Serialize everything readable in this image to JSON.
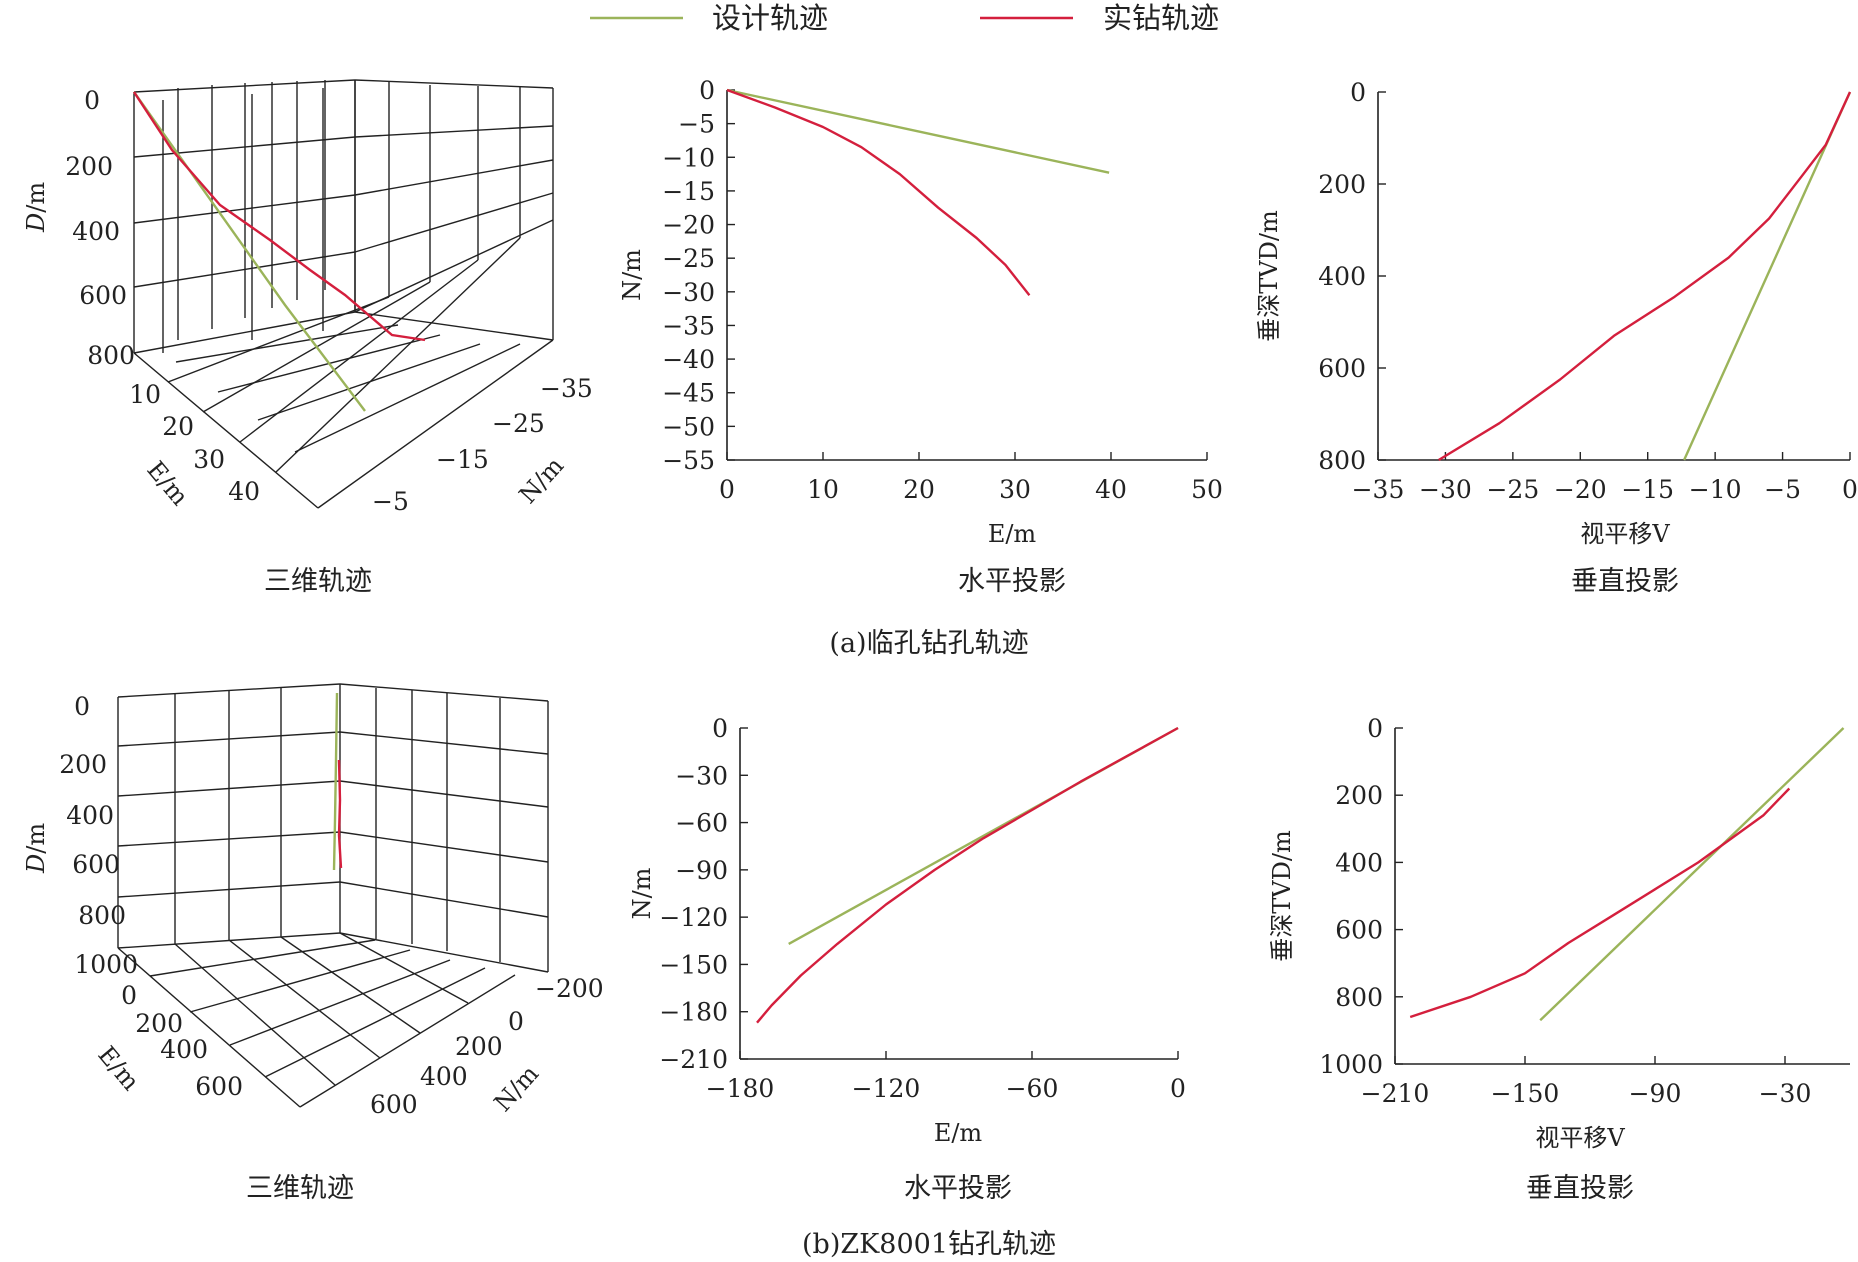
{
  "legend": {
    "design_label": "设计轨迹",
    "actual_label": "实钻轨迹",
    "design_color": "#9bb45a",
    "actual_color": "#d41f3d"
  },
  "captions": {
    "a": "(a)临孔钻孔轨迹",
    "b": "(b)ZK8001钻孔轨迹"
  },
  "chart_data": [
    {
      "id": "a_3d",
      "type": "line",
      "title": "三维轨迹",
      "xlabel": "E/m",
      "ylabel": "N/m",
      "zlabel": "D/m",
      "xlim": [
        5,
        45
      ],
      "ylim": [
        -40,
        0
      ],
      "zlim": [
        0,
        800
      ],
      "x_ticks": [
        10,
        20,
        30,
        40
      ],
      "y_ticks": [
        -5,
        -15,
        -25,
        -35
      ],
      "z_ticks": [
        0,
        200,
        400,
        600,
        800
      ],
      "grid": true,
      "series": [
        {
          "name": "设计轨迹",
          "x": [
            0,
            10,
            20,
            30,
            40
          ],
          "y": [
            0,
            -3.1,
            -6.2,
            -9.3,
            -12.3
          ],
          "z": [
            0,
            200,
            400,
            600,
            800
          ]
        },
        {
          "name": "实钻轨迹",
          "x": [
            0,
            10,
            14,
            18,
            22,
            26,
            29,
            31.5
          ],
          "y": [
            0,
            -5.5,
            -8.5,
            -12.5,
            -17.5,
            -22,
            -26,
            -30.5
          ],
          "z": [
            0,
            140,
            240,
            350,
            460,
            560,
            650,
            730
          ]
        }
      ]
    },
    {
      "id": "a_plan",
      "type": "line",
      "title": "水平投影",
      "xlabel": "E/m",
      "ylabel": "N/m",
      "xlim": [
        0,
        50
      ],
      "ylim": [
        -55,
        0
      ],
      "x_ticks": [
        0,
        10,
        20,
        30,
        40,
        50
      ],
      "y_ticks": [
        0,
        -5,
        -10,
        -15,
        -20,
        -25,
        -30,
        -35,
        -40,
        -45,
        -50,
        -55
      ],
      "series": [
        {
          "name": "设计轨迹",
          "x": [
            0,
            39.8
          ],
          "y": [
            0,
            -12.3
          ]
        },
        {
          "name": "实钻轨迹",
          "x": [
            0,
            5,
            10,
            14,
            18,
            22,
            26,
            29,
            31.5
          ],
          "y": [
            0,
            -2.6,
            -5.5,
            -8.5,
            -12.5,
            -17.5,
            -22,
            -26,
            -30.5
          ]
        }
      ]
    },
    {
      "id": "a_vert",
      "type": "line",
      "title": "垂直投影",
      "xlabel": "视平移V",
      "ylabel": "垂深TVD/m",
      "xlim": [
        -35,
        0
      ],
      "ylim": [
        800,
        0
      ],
      "x_ticks": [
        -35,
        -30,
        -25,
        -20,
        -15,
        -10,
        -5,
        0
      ],
      "y_ticks": [
        0,
        200,
        400,
        600,
        800
      ],
      "series": [
        {
          "name": "设计轨迹",
          "x": [
            0,
            -12.3
          ],
          "y": [
            0,
            800
          ]
        },
        {
          "name": "实钻轨迹",
          "x": [
            0,
            -1.8,
            -3.5,
            -6,
            -9,
            -13,
            -17.5,
            -21.5,
            -26,
            -30.5
          ],
          "y": [
            0,
            115,
            180,
            275,
            360,
            445,
            530,
            625,
            720,
            800
          ]
        }
      ]
    },
    {
      "id": "b_3d",
      "type": "line",
      "title": "三维轨迹",
      "xlabel": "E/m",
      "ylabel": "N/m",
      "zlabel": "D/m",
      "xlim": [
        0,
        700
      ],
      "ylim": [
        -250,
        700
      ],
      "zlim": [
        0,
        1000
      ],
      "x_ticks": [
        0,
        200,
        400,
        600
      ],
      "y_ticks": [
        -200,
        0,
        200,
        400,
        600
      ],
      "z_ticks": [
        0,
        200,
        400,
        600,
        800,
        1000
      ],
      "grid": true,
      "series": [
        {
          "name": "设计轨迹",
          "x": [
            0,
            -20,
            -45,
            -70
          ],
          "y": [
            0,
            -15,
            -35,
            -55
          ],
          "z": [
            0,
            200,
            400,
            600
          ]
        },
        {
          "name": "实钻轨迹",
          "x": [
            0,
            -20,
            -45,
            -75,
            -120
          ],
          "y": [
            0,
            -15,
            -35,
            -70,
            -110
          ],
          "z": [
            0,
            200,
            400,
            550,
            620
          ]
        }
      ]
    },
    {
      "id": "b_plan",
      "type": "line",
      "title": "水平投影",
      "xlabel": "E/m",
      "ylabel": "N/m",
      "xlim": [
        -180,
        0
      ],
      "ylim": [
        -210,
        0
      ],
      "x_ticks": [
        -180,
        -120,
        -60,
        0
      ],
      "y_ticks": [
        0,
        -30,
        -60,
        -90,
        -120,
        -150,
        -180,
        -210
      ],
      "series": [
        {
          "name": "设计轨迹",
          "x": [
            0,
            -160
          ],
          "y": [
            0,
            -137
          ]
        },
        {
          "name": "实钻轨迹",
          "x": [
            0,
            -20,
            -40,
            -60,
            -80,
            -100,
            -120,
            -140,
            -155,
            -167,
            -173
          ],
          "y": [
            0,
            -17,
            -34,
            -52,
            -70,
            -90,
            -112,
            -137,
            -157,
            -176,
            -187
          ]
        }
      ]
    },
    {
      "id": "b_vert",
      "type": "line",
      "title": "垂直投影",
      "xlabel": "视平移V",
      "ylabel": "垂深TVD/m",
      "xlim": [
        -210,
        0
      ],
      "ylim": [
        1000,
        0
      ],
      "x_ticks": [
        -210,
        -150,
        -90,
        -30
      ],
      "y_ticks": [
        0,
        200,
        400,
        600,
        800,
        1000
      ],
      "series": [
        {
          "name": "设计轨迹",
          "x": [
            -3,
            -143
          ],
          "y": [
            0,
            870
          ]
        },
        {
          "name": "实钻轨迹",
          "x": [
            -28,
            -40,
            -55,
            -70,
            -90,
            -110,
            -130,
            -150,
            -175,
            -203
          ],
          "y": [
            180,
            260,
            330,
            400,
            480,
            560,
            640,
            730,
            800,
            860
          ]
        }
      ]
    }
  ]
}
